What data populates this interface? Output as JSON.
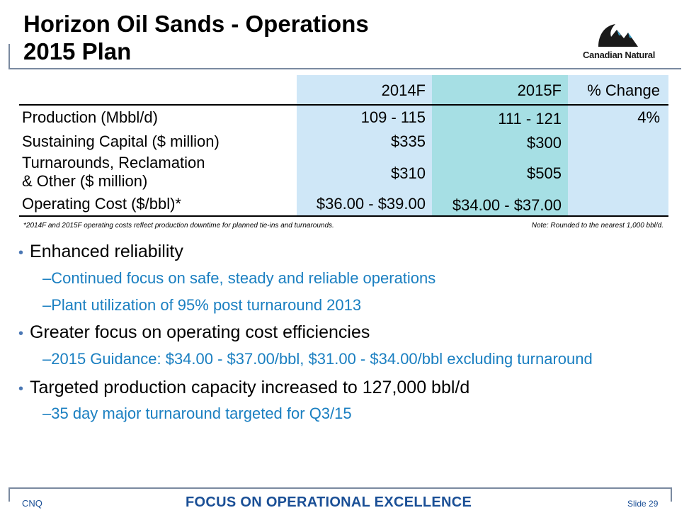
{
  "slide": {
    "title_line1": "Horizon Oil Sands - Operations",
    "title_line2": "2015 Plan"
  },
  "logo": {
    "text": "Canadian Natural",
    "mark_color": "#1a1a1a",
    "accent_color": "#3aa0c8"
  },
  "table": {
    "headers": [
      "",
      "2014F",
      "2015F",
      "% Change"
    ],
    "rows": [
      {
        "label_line1": "Production (Mbbl/d)",
        "label_line2": "",
        "v2014": "109 - 115",
        "v2015": "111 - 121",
        "pct": "4%"
      },
      {
        "label_line1": "Sustaining Capital ($ million)",
        "label_line2": "",
        "v2014": "$335",
        "v2015": "$300",
        "pct": ""
      },
      {
        "label_line1": "Turnarounds, Reclamation",
        "label_line2": "& Other ($ million)",
        "v2014": "$310",
        "v2015": "$505",
        "pct": ""
      },
      {
        "label_line1": "Operating Cost ($/bbl)*",
        "label_line2": "",
        "v2014": "$36.00 - $39.00",
        "v2015": "$34.00 - $37.00",
        "pct": ""
      }
    ],
    "colors": {
      "col_light": "#cfe7f7",
      "col_teal": "#a6dfe4"
    }
  },
  "footnotes": {
    "left": "*2014F and 2015F operating costs reflect production downtime  for planned tie-ins and turnarounds.",
    "right": "Note: Rounded to the nearest 1,000 bbl/d."
  },
  "bullets": [
    {
      "text": "Enhanced reliability",
      "subs": [
        "Continued focus on safe, steady and reliable operations",
        "Plant utilization of 95% post turnaround 2013"
      ]
    },
    {
      "text": "Greater focus on operating cost efficiencies",
      "subs": [
        "2015 Guidance: $34.00 - $37.00/bbl, $31.00 - $34.00/bbl excluding turnaround"
      ]
    },
    {
      "text": "Targeted production capacity increased to 127,000 bbl/d",
      "subs": [
        "35 day major turnaround targeted for Q3/15"
      ]
    }
  ],
  "footer": {
    "left": "CNQ",
    "center": "FOCUS ON OPERATIONAL EXCELLENCE",
    "right": "Slide 29"
  },
  "colors": {
    "bullet_sub": "#1a7fc1",
    "footer_text": "#1a4f96",
    "bullet_dot": "#4a77b4"
  }
}
